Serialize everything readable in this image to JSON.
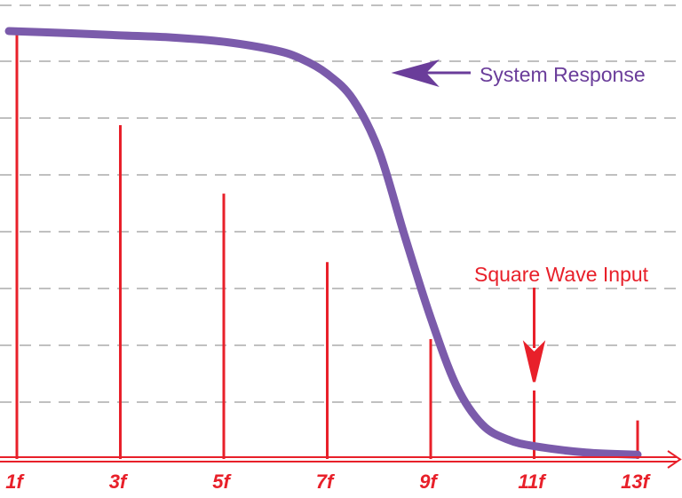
{
  "chart_data": {
    "type": "bar",
    "categories": [
      "1f",
      "3f",
      "5f",
      "7f",
      "9f",
      "11f",
      "13f"
    ],
    "series": [
      {
        "name": "Square Wave Input",
        "values": [
          1.0,
          0.78,
          0.62,
          0.46,
          0.28,
          0.16,
          0.09
        ]
      },
      {
        "name": "System Response",
        "type": "line",
        "x": [
          1,
          2,
          3,
          4,
          5,
          6,
          6.5,
          7,
          7.5,
          8,
          8.5,
          9,
          9.5,
          10,
          10.5,
          11,
          12,
          13
        ],
        "values": [
          1.0,
          0.995,
          0.99,
          0.985,
          0.975,
          0.955,
          0.935,
          0.9,
          0.84,
          0.72,
          0.52,
          0.33,
          0.17,
          0.08,
          0.045,
          0.03,
          0.015,
          0.01
        ]
      }
    ],
    "annotations": [
      {
        "text": "System Response",
        "target_series": "System Response"
      },
      {
        "text": "Square Wave Input",
        "target_category": "11f"
      }
    ],
    "ylim": [
      0,
      1.05
    ],
    "xlim": [
      0.85,
      13.4
    ],
    "grid": {
      "horizontal": true,
      "style": "dashed"
    },
    "title": "",
    "xlabel": "",
    "ylabel": ""
  },
  "colors": {
    "bars": "#e8202a",
    "response": "#7b5bab",
    "grid": "#9a9a9a",
    "axis": "#e8202a",
    "tick_label": "#e8202a",
    "response_label": "#6a3d9a",
    "input_label": "#e8202a"
  }
}
